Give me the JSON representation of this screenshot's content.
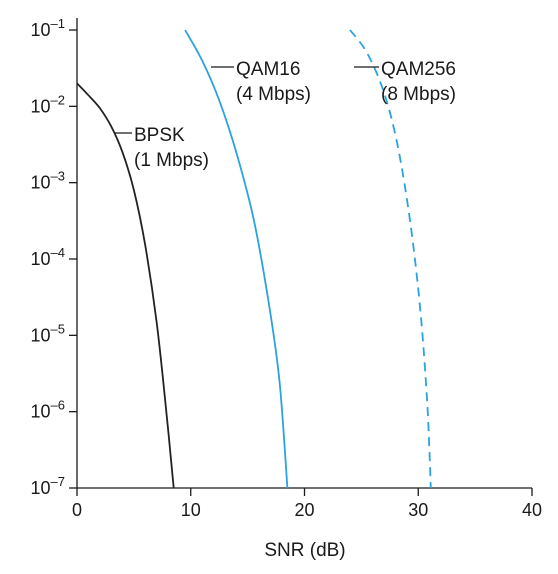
{
  "chart_data": {
    "type": "line",
    "xlabel": "SNR (dB)",
    "ylabel": "",
    "xlim": [
      0,
      40
    ],
    "ylim": [
      1e-07,
      0.1
    ],
    "yscale": "log",
    "grid": false,
    "x_ticks": [
      "0",
      "10",
      "20",
      "30",
      "40"
    ],
    "y_ticks": [
      {
        "base": "10",
        "exp": "–1",
        "value": 0.1
      },
      {
        "base": "10",
        "exp": "–2",
        "value": 0.01
      },
      {
        "base": "10",
        "exp": "–3",
        "value": 0.001
      },
      {
        "base": "10",
        "exp": "–4",
        "value": 0.0001
      },
      {
        "base": "10",
        "exp": "–5",
        "value": 1e-05
      },
      {
        "base": "10",
        "exp": "–6",
        "value": 1e-06
      },
      {
        "base": "10",
        "exp": "–7",
        "value": 1e-07
      }
    ],
    "series": [
      {
        "id": "bpsk",
        "name": "BPSK",
        "rate": "(1 Mbps)",
        "color": "#222222",
        "dashed": false,
        "points": [
          [
            0,
            0.02
          ],
          [
            1,
            0.014
          ],
          [
            2,
            0.0095
          ],
          [
            3,
            0.0055
          ],
          [
            4,
            0.0025
          ],
          [
            5,
            0.0008
          ],
          [
            6,
            0.00015
          ],
          [
            7,
            1.5e-05
          ],
          [
            7.8,
            1.2e-06
          ],
          [
            8.5,
            1e-07
          ]
        ]
      },
      {
        "id": "qam16",
        "name": "QAM16",
        "rate": "(4 Mbps)",
        "color": "#29a3e0",
        "dashed": false,
        "points": [
          [
            9.5,
            0.1
          ],
          [
            11,
            0.04
          ],
          [
            12.5,
            0.012
          ],
          [
            14,
            0.0025
          ],
          [
            15.5,
            0.00035
          ],
          [
            16.8,
            3e-05
          ],
          [
            17.8,
            2.5e-06
          ],
          [
            18.5,
            1e-07
          ]
        ]
      },
      {
        "id": "qam256",
        "name": "QAM256",
        "rate": "(8 Mbps)",
        "color": "#29a3e0",
        "dashed": true,
        "points": [
          [
            24,
            0.1
          ],
          [
            25.5,
            0.05
          ],
          [
            27,
            0.015
          ],
          [
            28.2,
            0.003
          ],
          [
            29.3,
            0.0003
          ],
          [
            30.2,
            2e-05
          ],
          [
            30.8,
            1.2e-06
          ],
          [
            31.1,
            1e-07
          ]
        ]
      }
    ]
  }
}
